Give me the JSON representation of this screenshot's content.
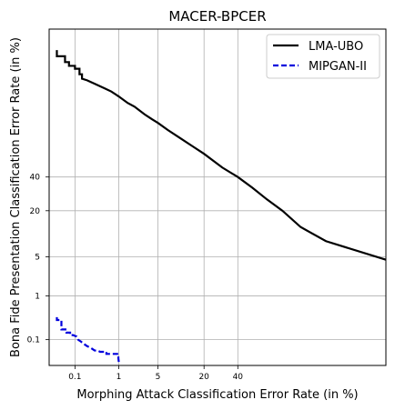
{
  "chart_data": {
    "type": "line",
    "title": "MACER-BPCER",
    "xlabel": "Morphing Attack Classification Error Rate (in %)",
    "ylabel": "Bona Fide Presentation Classification Error Rate (in %)",
    "x_ticks": [
      "0.1",
      "1",
      "5",
      "20",
      "40"
    ],
    "y_ticks": [
      "0.1",
      "1",
      "5",
      "20",
      "40"
    ],
    "grid": true,
    "legend_position": "top-right",
    "series": [
      {
        "name": "LMA-UBO",
        "color": "#000000",
        "style": "solid",
        "points": [
          [
            0.033,
            97.5
          ],
          [
            0.033,
            96.8
          ],
          [
            0.055,
            96.8
          ],
          [
            0.055,
            96.0
          ],
          [
            0.07,
            96.0
          ],
          [
            0.07,
            95.4
          ],
          [
            0.1,
            95.4
          ],
          [
            0.1,
            94.9
          ],
          [
            0.13,
            94.9
          ],
          [
            0.13,
            93.8
          ],
          [
            0.15,
            93.8
          ],
          [
            0.15,
            92.8
          ],
          [
            0.2,
            92.4
          ],
          [
            0.3,
            91.5
          ],
          [
            0.5,
            90.2
          ],
          [
            0.7,
            89.2
          ],
          [
            1,
            87.5
          ],
          [
            1.5,
            85.0
          ],
          [
            2,
            83.5
          ],
          [
            3,
            80.0
          ],
          [
            4,
            77.5
          ],
          [
            5,
            75.5
          ],
          [
            7,
            71.5
          ],
          [
            10,
            67.0
          ],
          [
            15,
            61.0
          ],
          [
            20,
            56.0
          ],
          [
            25,
            51.0
          ],
          [
            30,
            46.5
          ],
          [
            40,
            40.0
          ],
          [
            50,
            33.0
          ],
          [
            60,
            26.0
          ],
          [
            70,
            20.0
          ],
          [
            80,
            13.0
          ],
          [
            90,
            8.5
          ],
          [
            99,
            4.5
          ]
        ]
      },
      {
        "name": "MIPGAN-II",
        "color": "#0000dd",
        "style": "dashed",
        "points": [
          [
            0.033,
            0.35
          ],
          [
            0.033,
            0.3
          ],
          [
            0.044,
            0.3
          ],
          [
            0.044,
            0.18
          ],
          [
            0.06,
            0.18
          ],
          [
            0.06,
            0.15
          ],
          [
            0.075,
            0.15
          ],
          [
            0.075,
            0.13
          ],
          [
            0.09,
            0.13
          ],
          [
            0.11,
            0.12
          ],
          [
            0.12,
            0.1
          ],
          [
            0.14,
            0.09
          ],
          [
            0.16,
            0.08
          ],
          [
            0.2,
            0.068
          ],
          [
            0.25,
            0.06
          ],
          [
            0.3,
            0.052
          ],
          [
            0.35,
            0.052
          ],
          [
            0.4,
            0.048
          ],
          [
            0.55,
            0.048
          ],
          [
            0.55,
            0.042
          ],
          [
            0.75,
            0.042
          ],
          [
            0.98,
            0.042
          ],
          [
            0.98,
            0.032
          ],
          [
            1.0,
            0.025
          ]
        ]
      }
    ]
  }
}
